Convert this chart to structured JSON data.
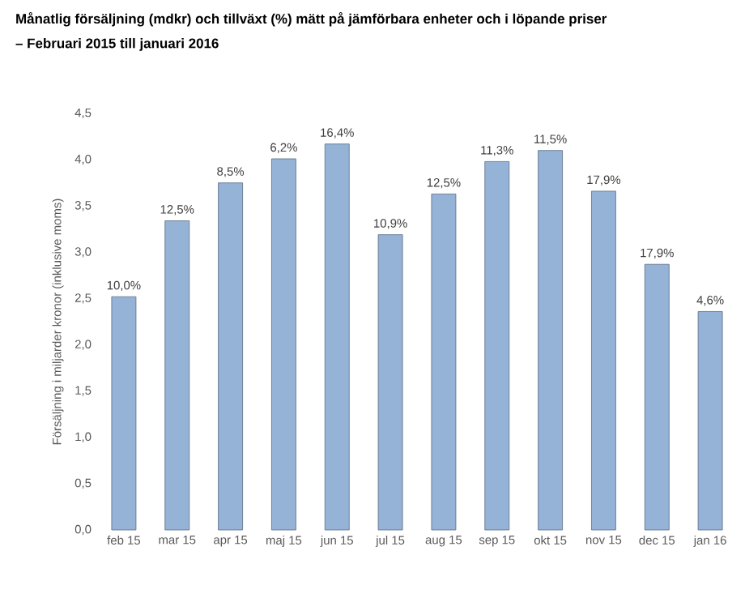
{
  "chart_data": {
    "type": "bar",
    "title": "Månatlig försäljning (mdkr) och tillväxt (%) mätt på jämförbara enheter och i löpande priser",
    "subtitle": "– Februari 2015 till januari 2016",
    "ylabel": "Försäljning i miljarder kronor (inklusive moms)",
    "categories": [
      "feb 15",
      "mar 15",
      "apr 15",
      "maj 15",
      "jun 15",
      "jul 15",
      "aug 15",
      "sep 15",
      "okt 15",
      "nov 15",
      "dec 15",
      "jan 16"
    ],
    "values": [
      2.52,
      3.34,
      3.75,
      4.01,
      4.17,
      3.19,
      3.63,
      3.98,
      4.1,
      3.66,
      2.87,
      2.36
    ],
    "annotations": [
      {
        "text": "10,0%",
        "x": "feb 15",
        "y": 2.52
      },
      {
        "text": "12,5%",
        "x": "mar 15",
        "y": 3.34
      },
      {
        "text": "8,5%",
        "x": "apr 15",
        "y": 3.75
      },
      {
        "text": "6,2%",
        "x": "maj 15",
        "y": 4.01
      },
      {
        "text": "16,4%",
        "x": "jun 15",
        "y": 4.17
      },
      {
        "text": "10,9%",
        "x": "jul 15",
        "y": 3.19
      },
      {
        "text": "12,5%",
        "x": "aug 15",
        "y": 3.63
      },
      {
        "text": "11,3%",
        "x": "sep 15",
        "y": 3.98
      },
      {
        "text": "11,5%",
        "x": "okt 15",
        "y": 4.1
      },
      {
        "text": "17,9%",
        "x": "nov 15",
        "y": 3.66
      },
      {
        "text": "17,9%",
        "x": "dec 15",
        "y": 2.87
      },
      {
        "text": "4,6%",
        "x": "jan 16",
        "y": 2.36
      }
    ],
    "color": "#95b3d7",
    "ylim": [
      0,
      4.5
    ],
    "yticks": [
      {
        "value": 0,
        "label": "0,0"
      },
      {
        "value": 0.5,
        "label": "0,5"
      },
      {
        "value": 1,
        "label": "1,0"
      },
      {
        "value": 1.5,
        "label": "1,5"
      },
      {
        "value": 2,
        "label": "2,0"
      },
      {
        "value": 2.5,
        "label": "2,5"
      },
      {
        "value": 3,
        "label": "3,0"
      },
      {
        "value": 3.5,
        "label": "3,5"
      },
      {
        "value": 4,
        "label": "4,0"
      },
      {
        "value": 4.5,
        "label": "4,5"
      }
    ],
    "grid": false
  }
}
